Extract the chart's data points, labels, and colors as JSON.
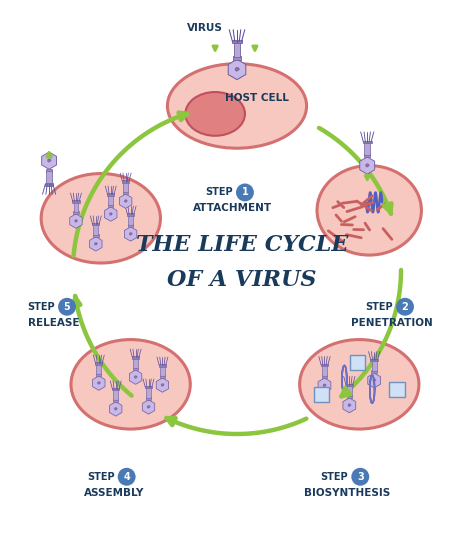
{
  "title_line1": "THE LIFE CYCLE",
  "title_line2": "OF A VIRUS",
  "title_fontsize": 15,
  "title_color": "#1a3a5c",
  "background_color": "#ffffff",
  "cell_fill": "#f7c8c0",
  "cell_edge": "#d47070",
  "step_number_bg": "#4a7ab5",
  "step_text_color": "#1a3a5c",
  "arrow_color": "#8cc63f",
  "virus_label": "VIRUS",
  "virus_head_fill": "#c8b8e8",
  "virus_head_edge": "#7060a0",
  "virus_body_fill": "#b8a8d8",
  "virus_body_edge": "#7060a0",
  "virus_leg_color": "#6050a0",
  "dna_color": "#d06070",
  "rna_scatter_color": "#c86060",
  "nucleus_fill": "#e08080",
  "nucleus_edge": "#c05060",
  "figsize": [
    4.74,
    5.33
  ],
  "dpi": 100
}
